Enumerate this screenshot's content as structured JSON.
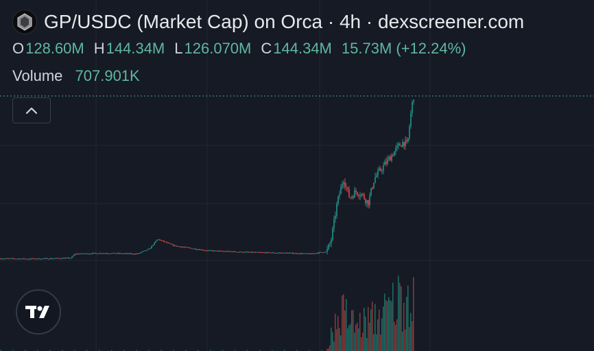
{
  "header": {
    "title": "GP/USDC (Market Cap) on Orca · 4h · dexscreener.com",
    "ohlc": [
      {
        "key": "O",
        "value": "128.60M"
      },
      {
        "key": "H",
        "value": "144.34M"
      },
      {
        "key": "L",
        "value": "126.070M"
      },
      {
        "key": "C",
        "value": "144.34M"
      }
    ],
    "change": "15.73M (+12.24%)",
    "volume_label": "Volume",
    "volume_value": "707.901K"
  },
  "icons": {
    "token_logo": "gp-token-logo",
    "collapse": "chevron-up-icon",
    "brand": "tradingview-logo-icon"
  },
  "colors": {
    "background": "#161a25",
    "grid": "#232734",
    "up": "#26a69a",
    "down": "#ef5350",
    "price_line": "#3aa58f"
  },
  "chart_data": {
    "type": "candlestick",
    "interval": "4h",
    "y_unit": "market cap (USD)",
    "close_value": 144.34,
    "value_scale": "M",
    "grid": true,
    "price_path_normalized": [
      [
        0.0,
        0.012
      ],
      [
        0.08,
        0.01
      ],
      [
        0.17,
        0.015
      ],
      [
        0.18,
        0.04
      ],
      [
        0.25,
        0.045
      ],
      [
        0.33,
        0.04
      ],
      [
        0.36,
        0.07
      ],
      [
        0.38,
        0.13
      ],
      [
        0.42,
        0.09
      ],
      [
        0.5,
        0.06
      ],
      [
        0.6,
        0.05
      ],
      [
        0.7,
        0.045
      ],
      [
        0.75,
        0.04
      ],
      [
        0.79,
        0.055
      ],
      [
        0.8,
        0.12
      ],
      [
        0.815,
        0.35
      ],
      [
        0.83,
        0.5
      ],
      [
        0.845,
        0.38
      ],
      [
        0.86,
        0.42
      ],
      [
        0.875,
        0.4
      ],
      [
        0.89,
        0.35
      ],
      [
        0.905,
        0.5
      ],
      [
        0.92,
        0.55
      ],
      [
        0.935,
        0.6
      ],
      [
        0.95,
        0.65
      ],
      [
        0.965,
        0.7
      ],
      [
        0.975,
        0.72
      ],
      [
        0.985,
        0.7
      ],
      [
        0.995,
        0.93
      ],
      [
        1.0,
        1.0
      ]
    ],
    "volume_profile_normalized": [
      [
        0.0,
        0.0
      ],
      [
        0.79,
        0.0
      ],
      [
        0.8,
        0.3
      ],
      [
        0.83,
        0.6
      ],
      [
        0.86,
        0.4
      ],
      [
        0.9,
        0.5
      ],
      [
        0.93,
        0.6
      ],
      [
        0.96,
        0.8
      ],
      [
        1.0,
        1.0
      ]
    ]
  }
}
